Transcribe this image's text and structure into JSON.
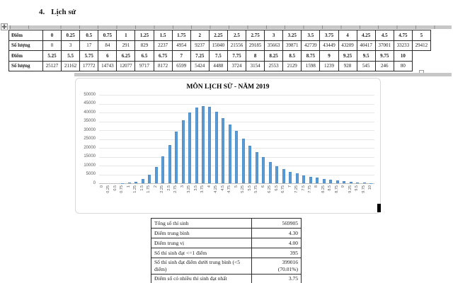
{
  "page": {
    "heading_number": "4.",
    "heading_text": "Lịch sử"
  },
  "score_table": {
    "row_labels": {
      "score": "Điểm",
      "count": "Số lượng"
    },
    "scores_low": [
      "0",
      "0.25",
      "0.5",
      "0.75",
      "1",
      "1.25",
      "1.5",
      "1.75",
      "2",
      "2.25",
      "2.5",
      "2.75",
      "3",
      "3.25",
      "3.5",
      "3.75",
      "4",
      "4.25",
      "4.5",
      "4.75",
      "5"
    ],
    "counts_low": [
      "0",
      "3",
      "17",
      "84",
      "291",
      "829",
      "2237",
      "4954",
      "9237",
      "15040",
      "21556",
      "29185",
      "35663",
      "39871",
      "42739",
      "43449",
      "43209",
      "40417",
      "37001",
      "33233",
      "29412"
    ],
    "scores_high": [
      "5.25",
      "5.5",
      "5.75",
      "6",
      "6.25",
      "6.5",
      "6.75",
      "7",
      "7.25",
      "7.5",
      "7.75",
      "8",
      "8.25",
      "8.5",
      "8.75",
      "9",
      "9.25",
      "9.5",
      "9.75",
      "10"
    ],
    "counts_high": [
      "25127",
      "21162",
      "17772",
      "14743",
      "12077",
      "9717",
      "8172",
      "6599",
      "5424",
      "4488",
      "3724",
      "3154",
      "2553",
      "2129",
      "1598",
      "1239",
      "928",
      "545",
      "246",
      "80"
    ]
  },
  "chart_data": {
    "type": "bar",
    "title": "MÔN LỊCH SỬ - NĂM 2019",
    "categories": [
      "0",
      "0.25",
      "0.5",
      "0.75",
      "1",
      "1.25",
      "1.5",
      "1.75",
      "2",
      "2.25",
      "2.5",
      "2.75",
      "3",
      "3.25",
      "3.5",
      "3.75",
      "4",
      "4.25",
      "4.5",
      "4.75",
      "5",
      "5.25",
      "5.5",
      "5.75",
      "6",
      "6.25",
      "6.5",
      "6.75",
      "7",
      "7.25",
      "7.5",
      "7.75",
      "8",
      "8.25",
      "8.5",
      "8.75",
      "9",
      "9.25",
      "9.5",
      "9.75",
      "10"
    ],
    "values": [
      0,
      3,
      17,
      84,
      291,
      829,
      2237,
      4954,
      9237,
      15040,
      21556,
      29185,
      35663,
      39871,
      42739,
      43449,
      43209,
      40417,
      37001,
      33233,
      29412,
      25127,
      21162,
      17772,
      14743,
      12077,
      9717,
      8172,
      6599,
      5424,
      4488,
      3724,
      3154,
      2553,
      2129,
      1598,
      1239,
      928,
      545,
      246,
      80
    ],
    "xlabel": "",
    "ylabel": "",
    "ylim": [
      0,
      50000
    ],
    "yticks": [
      0,
      5000,
      10000,
      15000,
      20000,
      25000,
      30000,
      35000,
      40000,
      45000,
      50000
    ],
    "grid": true,
    "legend_position": "none",
    "bar_color": "#5b9bd5"
  },
  "summary_table": {
    "rows": [
      {
        "label": "Tổng số thí sinh",
        "value": "569905"
      },
      {
        "label": "Điểm trung bình",
        "value": "4.30"
      },
      {
        "label": "Điểm trung vị",
        "value": "4.00"
      },
      {
        "label": "Số thí sinh đạt <=1 điểm",
        "value": "395"
      },
      {
        "label": "Số thí sinh đạt điểm dưới trung bình (<5 điểm)",
        "value": "399016\n(70.01%)"
      },
      {
        "label": "Điểm số có nhiều thí sinh đạt nhất",
        "value": "3.75"
      }
    ]
  }
}
